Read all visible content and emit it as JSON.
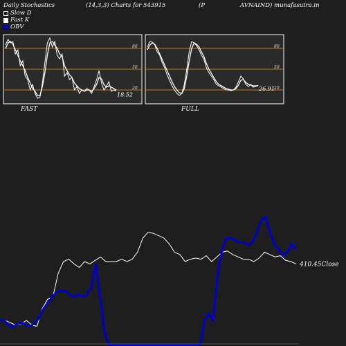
{
  "header": {
    "title": "Daily Stochastics",
    "params": "(14,3,3) Charts for 543915",
    "symbol_open": "(P",
    "symbol_rest": "AVNAIND) munafasutra.in"
  },
  "legend": {
    "slow_d": "Slow  D",
    "fast_k": "Fast K",
    "obv": "OBV"
  },
  "colors": {
    "background": "#1e1e1e",
    "panel_bg": "#2a2a2a",
    "grid": "#c87a1e",
    "line": "#ffffff",
    "obv": "#0000cc"
  },
  "chart_data": [
    {
      "type": "line",
      "title": "FAST",
      "ylim": [
        0,
        100
      ],
      "gridlines": [
        20,
        50,
        80
      ],
      "ytick_labels": [
        "80",
        "50",
        "20"
      ],
      "last_value_label": "18.52",
      "series": [
        {
          "values": [
            85,
            93,
            88,
            90,
            72,
            78,
            55,
            62,
            40,
            35,
            20,
            28,
            15,
            8,
            10,
            30,
            60,
            88,
            95,
            82,
            90,
            70,
            65,
            72,
            40,
            45,
            35,
            38,
            20,
            25,
            15,
            20,
            18,
            22,
            20,
            15,
            25,
            35,
            48,
            30,
            20,
            25,
            32,
            18,
            20,
            18.52
          ]
        },
        {
          "values": [
            80,
            88,
            90,
            86,
            78,
            70,
            62,
            55,
            48,
            38,
            30,
            22,
            18,
            12,
            12,
            25,
            45,
            70,
            88,
            90,
            85,
            80,
            72,
            68,
            55,
            48,
            42,
            38,
            30,
            26,
            22,
            20,
            18,
            20,
            20,
            18,
            22,
            28,
            38,
            36,
            28,
            24,
            26,
            24,
            22,
            20
          ]
        }
      ]
    },
    {
      "type": "line",
      "title": "FULL",
      "ylim": [
        0,
        100
      ],
      "gridlines": [
        20,
        50,
        80
      ],
      "ytick_labels": [
        "80",
        "50",
        "20"
      ],
      "last_value_label": "26.91",
      "series": [
        {
          "values": [
            82,
            90,
            89,
            85,
            75,
            70,
            60,
            52,
            42,
            34,
            26,
            20,
            15,
            12,
            15,
            28,
            50,
            75,
            90,
            88,
            84,
            78,
            70,
            64,
            52,
            45,
            40,
            35,
            28,
            26,
            24,
            22,
            20,
            20,
            19,
            20,
            24,
            32,
            40,
            36,
            28,
            25,
            28,
            24,
            25,
            26.91
          ]
        },
        {
          "values": [
            78,
            85,
            88,
            86,
            80,
            72,
            64,
            56,
            48,
            40,
            32,
            25,
            20,
            16,
            15,
            22,
            40,
            62,
            80,
            88,
            86,
            82,
            75,
            68,
            58,
            50,
            44,
            38,
            32,
            28,
            26,
            24,
            22,
            21,
            20,
            20,
            22,
            27,
            34,
            35,
            31,
            28,
            27,
            26,
            26,
            26
          ]
        }
      ]
    },
    {
      "type": "line",
      "close_label": "410.45Close",
      "series": [
        {
          "values": [
            20,
            20,
            18,
            16,
            17,
            20,
            16,
            15,
            30,
            38,
            40,
            60,
            70,
            72,
            68,
            65,
            70,
            68,
            71,
            74,
            70,
            70,
            70,
            72,
            70,
            72,
            78,
            90,
            95,
            94,
            92,
            90,
            85,
            78,
            76,
            70,
            72,
            73,
            72,
            75,
            70,
            74,
            78,
            79,
            76,
            74,
            72,
            72,
            70,
            73,
            78,
            76,
            74,
            75,
            71,
            70,
            68
          ]
        },
        {
          "values": [
            20,
            20,
            16,
            14,
            17,
            18,
            16,
            15,
            18,
            22,
            30,
            35,
            40,
            44,
            45,
            45,
            42,
            40,
            42,
            40,
            42,
            48,
            68,
            40,
            10,
            -15,
            -60,
            -80,
            -90,
            -90,
            -85,
            -90,
            -80,
            -70,
            -80,
            -85,
            -90,
            -95,
            -100,
            -95,
            -90,
            -85,
            -80,
            -80,
            -85,
            -80,
            -60,
            20,
            26,
            20,
            60,
            80,
            90,
            90,
            88,
            86,
            86,
            84,
            86,
            95,
            105,
            108,
            95,
            85,
            80,
            75,
            78,
            85,
            80
          ]
        }
      ]
    }
  ]
}
